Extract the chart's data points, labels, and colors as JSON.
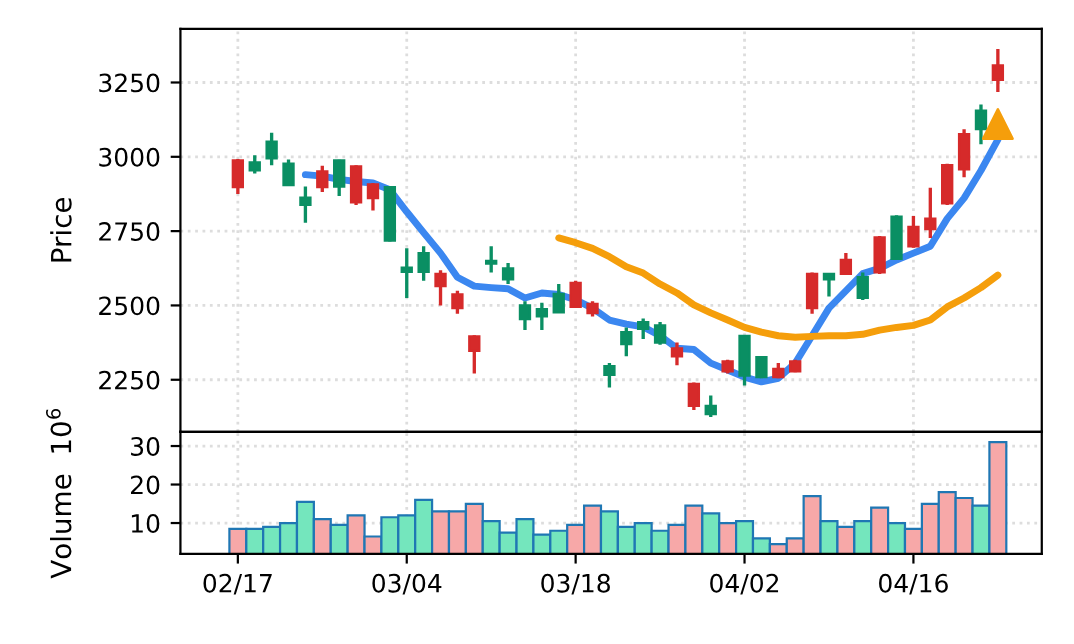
{
  "chart_data": [
    {
      "type": "candlestick",
      "ylabel": "Price",
      "categories": [
        null,
        null,
        null,
        null,
        null,
        null,
        null,
        null,
        null,
        null,
        null,
        null,
        null,
        null,
        null,
        null,
        null,
        null,
        null,
        null,
        null,
        null,
        null,
        null,
        null,
        null,
        null,
        null,
        null,
        null,
        null,
        null,
        null,
        null,
        null,
        null,
        null,
        null,
        null,
        null,
        null,
        null,
        null,
        null,
        null,
        null
      ],
      "ohlc": [
        [
          2898,
          2993,
          2875,
          2988
        ],
        [
          2981,
          3005,
          2944,
          2954
        ],
        [
          3051,
          3081,
          2972,
          2995
        ],
        [
          2977,
          2991,
          2905,
          2905
        ],
        [
          2863,
          2900,
          2778,
          2838
        ],
        [
          2898,
          2970,
          2882,
          2951
        ],
        [
          2988,
          2990,
          2868,
          2900
        ],
        [
          2847,
          2972,
          2838,
          2968
        ],
        [
          2861,
          2912,
          2819,
          2907
        ],
        [
          2898,
          2900,
          2715,
          2718
        ],
        [
          2627,
          2692,
          2525,
          2613
        ],
        [
          2676,
          2699,
          2583,
          2613
        ],
        [
          2565,
          2618,
          2500,
          2606
        ],
        [
          2491,
          2549,
          2472,
          2537
        ],
        [
          2347,
          2400,
          2271,
          2396
        ],
        [
          2650,
          2699,
          2611,
          2641
        ],
        [
          2625,
          2643,
          2572,
          2588
        ],
        [
          2500,
          2514,
          2417,
          2454
        ],
        [
          2488,
          2509,
          2417,
          2463
        ],
        [
          2539,
          2572,
          2477,
          2477
        ],
        [
          2495,
          2583,
          2491,
          2576
        ],
        [
          2474,
          2514,
          2463,
          2505
        ],
        [
          2296,
          2306,
          2224,
          2266
        ],
        [
          2410,
          2426,
          2329,
          2370
        ],
        [
          2444,
          2456,
          2387,
          2421
        ],
        [
          2433,
          2444,
          2368,
          2375
        ],
        [
          2329,
          2375,
          2299,
          2356
        ],
        [
          2162,
          2241,
          2148,
          2236
        ],
        [
          2162,
          2197,
          2125,
          2134
        ],
        [
          2278,
          2317,
          2271,
          2312
        ],
        [
          2398,
          2400,
          2231,
          2264
        ],
        [
          2326,
          2330,
          2255,
          2259
        ],
        [
          2259,
          2306,
          2255,
          2287
        ],
        [
          2278,
          2317,
          2275,
          2312
        ],
        [
          2491,
          2611,
          2472,
          2606
        ],
        [
          2606,
          2608,
          2530,
          2588
        ],
        [
          2606,
          2676,
          2602,
          2653
        ],
        [
          2595,
          2611,
          2518,
          2525
        ],
        [
          2611,
          2734,
          2606,
          2729
        ],
        [
          2799,
          2803,
          2653,
          2657
        ],
        [
          2699,
          2801,
          2694,
          2764
        ],
        [
          2757,
          2896,
          2727,
          2792
        ],
        [
          2843,
          2977,
          2838,
          2972
        ],
        [
          2958,
          3093,
          2931,
          3076
        ],
        [
          3155,
          3176,
          3042,
          3093
        ],
        [
          3259,
          3363,
          3218,
          3308
        ]
      ],
      "colors": [
        "#d62a2a",
        "#0a8f63",
        "#0a8f63",
        "#0a8f63",
        "#0a8f63",
        "#d62a2a",
        "#0a8f63",
        "#d62a2a",
        "#d62a2a",
        "#0a8f63",
        "#0a8f63",
        "#0a8f63",
        "#d62a2a",
        "#d62a2a",
        "#d62a2a",
        "#0a8f63",
        "#0a8f63",
        "#0a8f63",
        "#0a8f63",
        "#0a8f63",
        "#d62a2a",
        "#d62a2a",
        "#0a8f63",
        "#0a8f63",
        "#0a8f63",
        "#0a8f63",
        "#d62a2a",
        "#d62a2a",
        "#0a8f63",
        "#d62a2a",
        "#0a8f63",
        "#0a8f63",
        "#d62a2a",
        "#d62a2a",
        "#d62a2a",
        "#0a8f63",
        "#d62a2a",
        "#0a8f63",
        "#d62a2a",
        "#0a8f63",
        "#d62a2a",
        "#d62a2a",
        "#d62a2a",
        "#d62a2a",
        "#0a8f63",
        "#d62a2a"
      ],
      "series": [
        {
          "type": "line",
          "color": "#3b87f0",
          "values": [
            null,
            null,
            null,
            null,
            2940,
            2935,
            2924,
            2917,
            2912,
            2889,
            2815,
            2745,
            2676,
            2595,
            2565,
            2560,
            2556,
            2525,
            2542,
            2537,
            2519,
            2491,
            2451,
            2437,
            2428,
            2398,
            2356,
            2352,
            2306,
            2283,
            2259,
            2243,
            2255,
            2306,
            2398,
            2491,
            2549,
            2607,
            2625,
            2653,
            2676,
            2699,
            2792,
            2861,
            2954,
            3058
          ]
        },
        {
          "type": "line",
          "color": "#f59e0b",
          "values": [
            null,
            null,
            null,
            null,
            null,
            null,
            null,
            null,
            null,
            null,
            null,
            null,
            null,
            null,
            null,
            null,
            null,
            null,
            null,
            2727,
            2711,
            2692,
            2664,
            2630,
            2609,
            2572,
            2542,
            2502,
            2475,
            2451,
            2426,
            2410,
            2398,
            2393,
            2396,
            2398,
            2398,
            2403,
            2417,
            2426,
            2433,
            2451,
            2495,
            2525,
            2560,
            2602
          ]
        },
        {
          "type": "scatter",
          "marker": "triangle",
          "color": "#f59e0b",
          "values": [
            null,
            null,
            null,
            null,
            null,
            null,
            null,
            null,
            null,
            null,
            null,
            null,
            null,
            null,
            null,
            null,
            null,
            null,
            null,
            null,
            null,
            null,
            null,
            null,
            null,
            null,
            null,
            null,
            null,
            null,
            null,
            null,
            null,
            null,
            null,
            null,
            null,
            null,
            null,
            null,
            null,
            null,
            null,
            null,
            null,
            3110
          ]
        }
      ],
      "ylim": [
        2075,
        3430
      ],
      "yticks": [
        2250,
        2500,
        2750,
        3000,
        3250
      ],
      "grid": true,
      "tick_labels": "y"
    },
    {
      "type": "bar",
      "ylabel": "Volume  10$^{6}$",
      "categories": [
        "02/17",
        null,
        null,
        null,
        null,
        null,
        null,
        null,
        null,
        null,
        "03/04",
        null,
        null,
        null,
        null,
        null,
        null,
        null,
        null,
        null,
        "03/18",
        null,
        null,
        null,
        null,
        null,
        null,
        null,
        null,
        null,
        "04/02",
        null,
        null,
        null,
        null,
        null,
        null,
        null,
        null,
        null,
        "04/16",
        null,
        null,
        null,
        null,
        null
      ],
      "values": [
        8.5,
        8.5,
        9,
        10,
        15.5,
        11,
        9.5,
        12,
        6.5,
        11.5,
        12,
        16,
        13,
        13,
        15,
        10.5,
        7.5,
        11,
        7,
        8,
        9.5,
        14.5,
        13,
        9,
        10,
        8,
        9.5,
        14.5,
        12.5,
        10,
        10.5,
        6,
        4.5,
        6,
        17,
        10.5,
        9,
        10.5,
        14,
        10,
        8.5,
        15,
        18,
        16.5,
        14.5,
        31
      ],
      "colors": [
        "#f7a8a8",
        "#74e6bd",
        "#74e6bd",
        "#74e6bd",
        "#74e6bd",
        "#f7a8a8",
        "#74e6bd",
        "#f7a8a8",
        "#f7a8a8",
        "#74e6bd",
        "#74e6bd",
        "#74e6bd",
        "#f7a8a8",
        "#f7a8a8",
        "#f7a8a8",
        "#74e6bd",
        "#74e6bd",
        "#74e6bd",
        "#74e6bd",
        "#74e6bd",
        "#f7a8a8",
        "#f7a8a8",
        "#74e6bd",
        "#74e6bd",
        "#74e6bd",
        "#74e6bd",
        "#f7a8a8",
        "#f7a8a8",
        "#74e6bd",
        "#f7a8a8",
        "#74e6bd",
        "#74e6bd",
        "#f7a8a8",
        "#f7a8a8",
        "#f7a8a8",
        "#74e6bd",
        "#f7a8a8",
        "#74e6bd",
        "#f7a8a8",
        "#74e6bd",
        "#f7a8a8",
        "#f7a8a8",
        "#f7a8a8",
        "#f7a8a8",
        "#74e6bd",
        "#f7a8a8"
      ],
      "ylim": [
        2,
        33.7
      ],
      "yticks": [
        10,
        20,
        30
      ],
      "grid": true
    }
  ]
}
